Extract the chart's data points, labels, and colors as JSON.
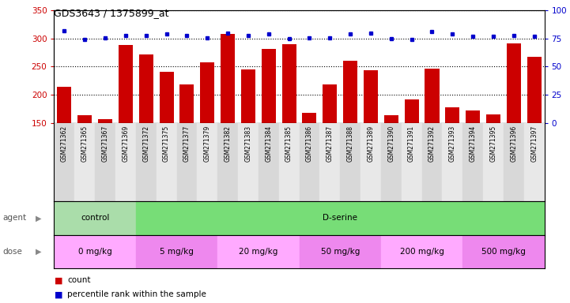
{
  "title": "GDS3643 / 1375899_at",
  "samples": [
    "GSM271362",
    "GSM271365",
    "GSM271367",
    "GSM271369",
    "GSM271372",
    "GSM271375",
    "GSM271377",
    "GSM271379",
    "GSM271382",
    "GSM271383",
    "GSM271384",
    "GSM271385",
    "GSM271386",
    "GSM271387",
    "GSM271388",
    "GSM271389",
    "GSM271390",
    "GSM271391",
    "GSM271392",
    "GSM271393",
    "GSM271394",
    "GSM271395",
    "GSM271396",
    "GSM271397"
  ],
  "counts": [
    214,
    163,
    157,
    288,
    272,
    241,
    219,
    258,
    308,
    245,
    281,
    290,
    168,
    219,
    260,
    243,
    163,
    192,
    246,
    178,
    172,
    165,
    292,
    267
  ],
  "percentiles": [
    82,
    74,
    76,
    78,
    78,
    79,
    78,
    76,
    80,
    78,
    79,
    75,
    76,
    76,
    79,
    80,
    75,
    74,
    81,
    79,
    77,
    77,
    78,
    77
  ],
  "ylim_left": [
    150,
    350
  ],
  "ylim_right": [
    0,
    100
  ],
  "yticks_left": [
    150,
    200,
    250,
    300,
    350
  ],
  "yticks_right": [
    0,
    25,
    50,
    75,
    100
  ],
  "bar_color": "#cc0000",
  "dot_color": "#0000cc",
  "agent_groups": [
    {
      "label": "control",
      "start": 0,
      "end": 4,
      "color": "#aaddaa"
    },
    {
      "label": "D-serine",
      "start": 4,
      "end": 24,
      "color": "#77dd77"
    }
  ],
  "dose_groups": [
    {
      "label": "0 mg/kg",
      "start": 0,
      "end": 4,
      "color": "#ffaaff"
    },
    {
      "label": "5 mg/kg",
      "start": 4,
      "end": 8,
      "color": "#ee88ee"
    },
    {
      "label": "20 mg/kg",
      "start": 8,
      "end": 12,
      "color": "#ffaaff"
    },
    {
      "label": "50 mg/kg",
      "start": 12,
      "end": 16,
      "color": "#ee88ee"
    },
    {
      "label": "200 mg/kg",
      "start": 16,
      "end": 20,
      "color": "#ffaaff"
    },
    {
      "label": "500 mg/kg",
      "start": 20,
      "end": 24,
      "color": "#ee88ee"
    }
  ],
  "legend_count_color": "#cc0000",
  "legend_dot_color": "#0000cc"
}
